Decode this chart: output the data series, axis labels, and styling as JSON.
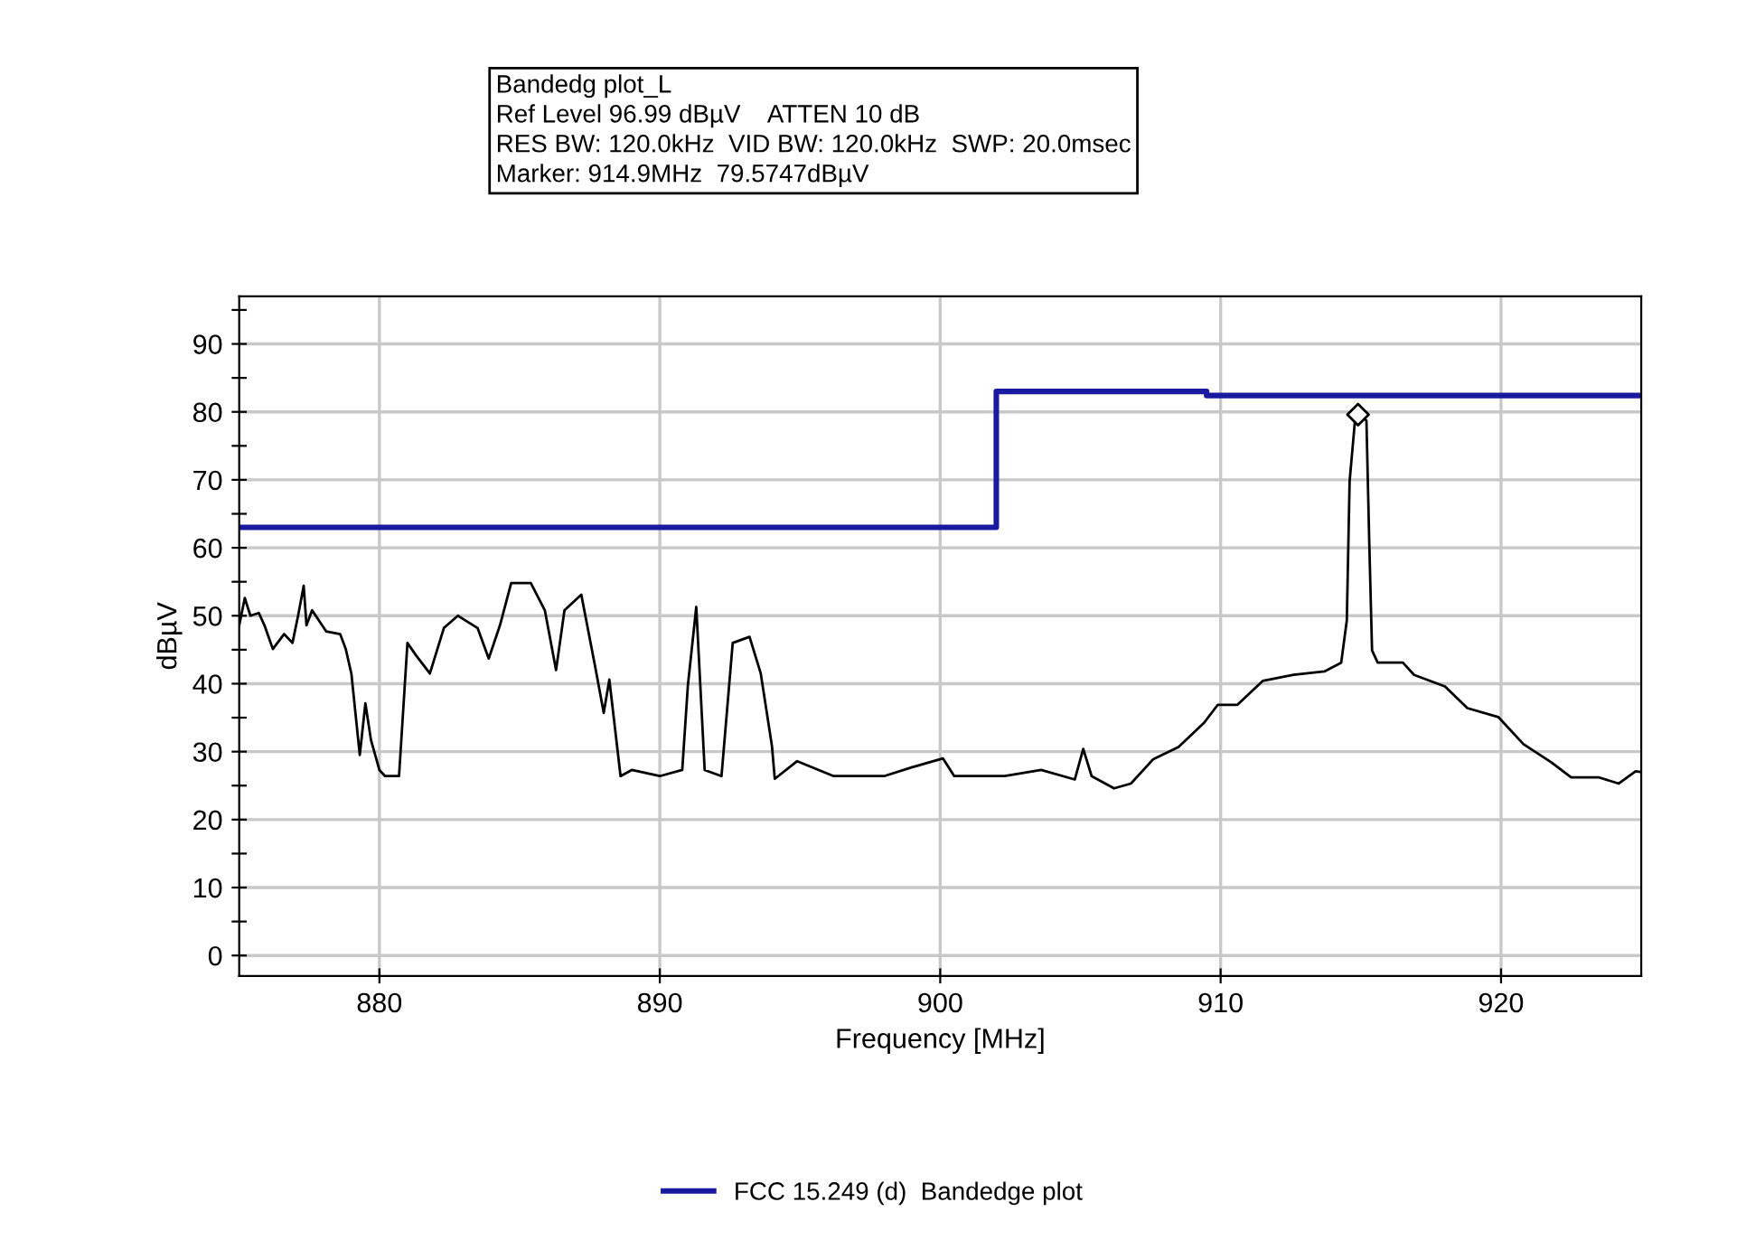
{
  "chart_data": {
    "type": "line",
    "title": "Bandedg plot_L",
    "annotations": [
      "Ref Level 96.99 dBµV    ATTEN 10 dB",
      "RES BW: 120.0kHz  VID BW: 120.0kHz  SWP: 20.0msec",
      "Marker: 914.9MHz  79.5747dBµV"
    ],
    "xlabel": "Frequency [MHz]",
    "ylabel": "dBµV",
    "xlim": [
      875,
      925
    ],
    "xticks": [
      880,
      890,
      900,
      910,
      920
    ],
    "ylim": [
      -3,
      97
    ],
    "yticks": [
      0,
      {
        "value": 5,
        "label": null
      },
      10,
      {
        "value": 15,
        "label": null
      },
      20,
      {
        "value": 25,
        "label": null
      },
      30,
      {
        "value": 35,
        "label": null
      },
      40,
      {
        "value": 45,
        "label": null
      },
      50,
      {
        "value": 55,
        "label": null
      },
      60,
      {
        "value": 65,
        "label": null
      },
      70,
      {
        "value": 75,
        "label": null
      },
      80,
      {
        "value": 85,
        "label": null
      },
      90,
      {
        "value": 95,
        "label": null
      }
    ],
    "grid": true,
    "legend": "bottom",
    "series": [
      {
        "color": "#000000",
        "x": [
          875.0,
          875.2,
          875.4,
          875.7,
          875.9,
          876.2,
          876.6,
          876.9,
          877.1,
          877.3,
          877.4,
          877.6,
          878.1,
          878.6,
          878.8,
          879.0,
          879.3,
          879.5,
          879.7,
          880.0,
          880.2,
          880.7,
          881.0,
          881.3,
          881.8,
          882.3,
          882.8,
          883.5,
          883.9,
          884.3,
          884.7,
          885.4,
          885.9,
          886.3,
          886.6,
          887.2,
          887.7,
          888.0,
          888.2,
          888.6,
          889.0,
          890.0,
          890.8,
          891.0,
          891.3,
          891.6,
          892.2,
          892.6,
          893.2,
          893.6,
          894.0,
          894.1,
          894.9,
          896.2,
          898.0,
          899.0,
          900.1,
          900.5,
          902.3,
          903.6,
          904.8,
          905.1,
          905.4,
          906.2,
          906.8,
          907.6,
          908.5,
          909.4,
          909.9,
          910.6,
          911.5,
          912.6,
          913.7,
          914.3,
          914.5,
          914.6,
          914.8,
          914.9,
          915.2,
          915.3,
          915.4,
          915.6,
          916.5,
          916.9,
          918.0,
          918.8,
          919.9,
          920.8,
          921.8,
          922.5,
          923.5,
          924.2,
          924.8,
          925.0
        ],
        "values": [
          48.6,
          52.6,
          50.0,
          50.4,
          48.6,
          45.1,
          47.3,
          46.0,
          50.0,
          54.4,
          48.6,
          50.8,
          47.7,
          47.3,
          45.1,
          41.5,
          29.5,
          37.1,
          31.7,
          27.3,
          26.4,
          26.4,
          46.0,
          44.2,
          41.5,
          48.2,
          50.0,
          48.2,
          43.7,
          48.6,
          54.8,
          54.8,
          50.8,
          42.0,
          50.8,
          53.1,
          42.4,
          35.7,
          40.6,
          26.4,
          27.3,
          26.4,
          27.3,
          39.7,
          51.3,
          27.3,
          26.4,
          46.0,
          46.9,
          41.5,
          30.8,
          26.0,
          28.6,
          26.4,
          26.4,
          27.7,
          29.0,
          26.4,
          26.4,
          27.3,
          25.9,
          30.4,
          26.4,
          24.6,
          25.3,
          28.9,
          30.7,
          34.2,
          36.9,
          36.9,
          40.4,
          41.3,
          41.8,
          43.1,
          49.3,
          69.8,
          79.1,
          79.6,
          78.7,
          60.9,
          44.9,
          43.1,
          43.1,
          41.3,
          39.6,
          36.4,
          35.1,
          31.1,
          28.4,
          26.2,
          26.2,
          25.3,
          27.1,
          27.0
        ]
      },
      {
        "type": "step",
        "name": "FCC 15.249 (d)  Bandedge plot",
        "color": "#1a1aa0",
        "x": [
          875,
          902,
          909.5,
          925
        ],
        "values": [
          63,
          83,
          82.4,
          82.4
        ]
      },
      {
        "type": "scatter",
        "color": "#000000",
        "marker": "diamond",
        "x": [
          914.9
        ],
        "values": [
          79.6
        ]
      }
    ]
  }
}
